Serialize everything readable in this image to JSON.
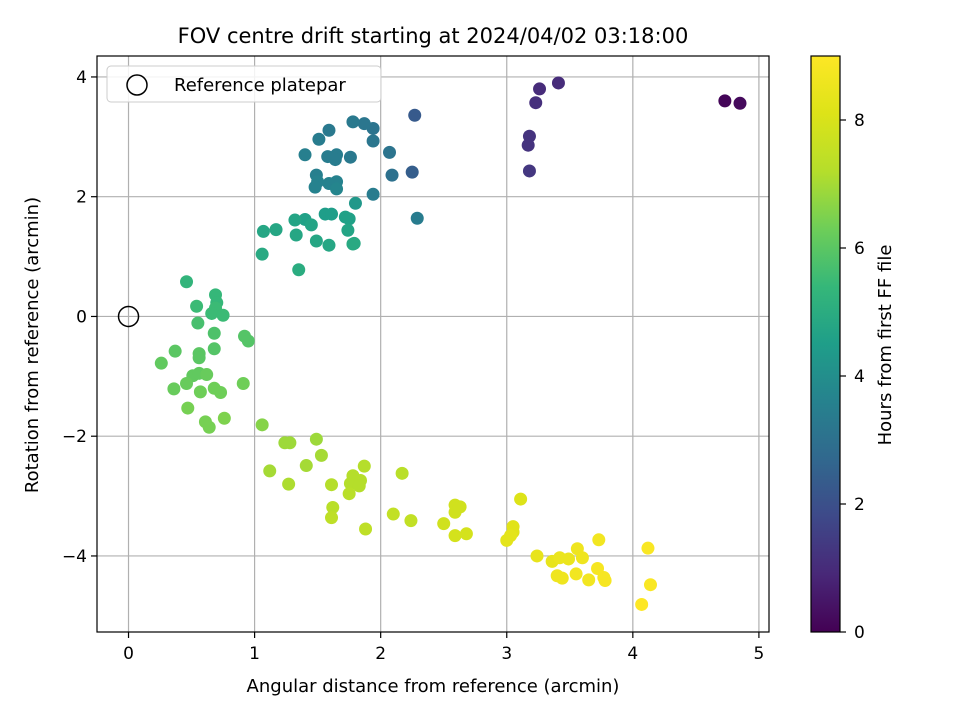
{
  "chart_data": {
    "type": "scatter",
    "title": "FOV centre drift starting at 2024/04/02 03:18:00",
    "xlabel": "Angular distance from reference (arcmin)",
    "ylabel": "Rotation from reference (arcmin)",
    "xlim": [
      -0.25,
      5.08
    ],
    "ylim": [
      -5.27,
      4.35
    ],
    "xticks": [
      0,
      1,
      2,
      3,
      4,
      5
    ],
    "xtick_labels": [
      "0",
      "1",
      "2",
      "3",
      "4",
      "5"
    ],
    "yticks": [
      -4,
      -2,
      0,
      2,
      4
    ],
    "ytick_labels": [
      "−4",
      "−2",
      "0",
      "2",
      "4"
    ],
    "grid": true,
    "legend": {
      "placement": "top-left",
      "entries": [
        {
          "label": "Reference platepar",
          "marker": "open-circle"
        }
      ]
    },
    "reference_point": {
      "x": 0,
      "y": 0
    },
    "colorbar": {
      "label": "Hours from first FF file",
      "colormap": "viridis",
      "range": [
        0,
        9
      ],
      "ticks": [
        0,
        2,
        4,
        6,
        8
      ],
      "tick_labels": [
        "0",
        "2",
        "4",
        "6",
        "8"
      ]
    },
    "points": [
      {
        "x": 4.73,
        "y": 3.6,
        "c": 0.1
      },
      {
        "x": 4.85,
        "y": 3.56,
        "c": 0.2
      },
      {
        "x": 3.41,
        "y": 3.9,
        "c": 1.0
      },
      {
        "x": 3.26,
        "y": 3.8,
        "c": 1.0
      },
      {
        "x": 3.23,
        "y": 3.57,
        "c": 1.1
      },
      {
        "x": 3.18,
        "y": 3.01,
        "c": 1.2
      },
      {
        "x": 3.17,
        "y": 2.86,
        "c": 1.2
      },
      {
        "x": 3.18,
        "y": 2.43,
        "c": 1.3
      },
      {
        "x": 2.27,
        "y": 3.36,
        "c": 2.3
      },
      {
        "x": 2.25,
        "y": 2.41,
        "c": 2.4
      },
      {
        "x": 2.29,
        "y": 1.64,
        "c": 3.4
      },
      {
        "x": 2.09,
        "y": 2.36,
        "c": 3.0
      },
      {
        "x": 2.07,
        "y": 2.74,
        "c": 3.1
      },
      {
        "x": 1.94,
        "y": 3.14,
        "c": 3.1
      },
      {
        "x": 1.94,
        "y": 2.93,
        "c": 3.2
      },
      {
        "x": 1.94,
        "y": 2.04,
        "c": 3.4
      },
      {
        "x": 1.87,
        "y": 3.22,
        "c": 3.2
      },
      {
        "x": 1.78,
        "y": 3.25,
        "c": 3.3
      },
      {
        "x": 1.76,
        "y": 2.66,
        "c": 3.3
      },
      {
        "x": 1.65,
        "y": 2.7,
        "c": 3.4
      },
      {
        "x": 1.64,
        "y": 2.62,
        "c": 3.4
      },
      {
        "x": 1.58,
        "y": 2.67,
        "c": 3.4
      },
      {
        "x": 1.59,
        "y": 3.11,
        "c": 3.3
      },
      {
        "x": 1.51,
        "y": 2.96,
        "c": 3.4
      },
      {
        "x": 1.4,
        "y": 2.7,
        "c": 3.5
      },
      {
        "x": 1.49,
        "y": 2.36,
        "c": 3.5
      },
      {
        "x": 1.5,
        "y": 2.25,
        "c": 3.6
      },
      {
        "x": 1.48,
        "y": 2.16,
        "c": 3.6
      },
      {
        "x": 1.59,
        "y": 2.22,
        "c": 3.6
      },
      {
        "x": 1.65,
        "y": 2.25,
        "c": 3.6
      },
      {
        "x": 1.65,
        "y": 2.13,
        "c": 3.7
      },
      {
        "x": 1.8,
        "y": 1.89,
        "c": 4.3
      },
      {
        "x": 1.56,
        "y": 1.71,
        "c": 4.5
      },
      {
        "x": 1.61,
        "y": 1.71,
        "c": 4.5
      },
      {
        "x": 1.72,
        "y": 1.66,
        "c": 4.6
      },
      {
        "x": 1.75,
        "y": 1.63,
        "c": 4.6
      },
      {
        "x": 1.4,
        "y": 1.62,
        "c": 4.6
      },
      {
        "x": 1.32,
        "y": 1.61,
        "c": 4.7
      },
      {
        "x": 1.45,
        "y": 1.53,
        "c": 4.7
      },
      {
        "x": 1.74,
        "y": 1.44,
        "c": 4.7
      },
      {
        "x": 1.17,
        "y": 1.45,
        "c": 4.8
      },
      {
        "x": 1.07,
        "y": 1.42,
        "c": 4.8
      },
      {
        "x": 1.33,
        "y": 1.36,
        "c": 4.8
      },
      {
        "x": 1.49,
        "y": 1.26,
        "c": 4.8
      },
      {
        "x": 1.59,
        "y": 1.19,
        "c": 4.8
      },
      {
        "x": 1.78,
        "y": 1.21,
        "c": 4.9
      },
      {
        "x": 1.79,
        "y": 1.22,
        "c": 4.9
      },
      {
        "x": 1.06,
        "y": 1.04,
        "c": 4.9
      },
      {
        "x": 1.35,
        "y": 0.78,
        "c": 5.0
      },
      {
        "x": 0.46,
        "y": 0.58,
        "c": 5.3
      },
      {
        "x": 0.69,
        "y": 0.36,
        "c": 5.4
      },
      {
        "x": 0.7,
        "y": 0.23,
        "c": 5.4
      },
      {
        "x": 0.54,
        "y": 0.17,
        "c": 5.5
      },
      {
        "x": 0.69,
        "y": 0.14,
        "c": 5.5
      },
      {
        "x": 0.66,
        "y": 0.05,
        "c": 5.5
      },
      {
        "x": 0.75,
        "y": 0.02,
        "c": 5.5
      },
      {
        "x": 0.55,
        "y": -0.11,
        "c": 5.7
      },
      {
        "x": 0.68,
        "y": -0.28,
        "c": 5.8
      },
      {
        "x": 0.92,
        "y": -0.33,
        "c": 5.9
      },
      {
        "x": 0.95,
        "y": -0.41,
        "c": 5.9
      },
      {
        "x": 0.68,
        "y": -0.54,
        "c": 5.9
      },
      {
        "x": 0.56,
        "y": -0.62,
        "c": 6.0
      },
      {
        "x": 0.56,
        "y": -0.69,
        "c": 6.0
      },
      {
        "x": 0.37,
        "y": -0.58,
        "c": 6.0
      },
      {
        "x": 0.26,
        "y": -0.78,
        "c": 6.1
      },
      {
        "x": 0.51,
        "y": -0.99,
        "c": 6.1
      },
      {
        "x": 0.56,
        "y": -0.95,
        "c": 6.1
      },
      {
        "x": 0.62,
        "y": -0.97,
        "c": 6.2
      },
      {
        "x": 0.46,
        "y": -1.12,
        "c": 6.2
      },
      {
        "x": 0.36,
        "y": -1.21,
        "c": 6.2
      },
      {
        "x": 0.57,
        "y": -1.26,
        "c": 6.3
      },
      {
        "x": 0.68,
        "y": -1.2,
        "c": 6.3
      },
      {
        "x": 0.73,
        "y": -1.27,
        "c": 6.3
      },
      {
        "x": 0.91,
        "y": -1.12,
        "c": 6.3
      },
      {
        "x": 0.47,
        "y": -1.53,
        "c": 6.4
      },
      {
        "x": 0.61,
        "y": -1.76,
        "c": 6.4
      },
      {
        "x": 0.64,
        "y": -1.85,
        "c": 6.4
      },
      {
        "x": 0.76,
        "y": -1.7,
        "c": 6.5
      },
      {
        "x": 1.06,
        "y": -1.81,
        "c": 6.6
      },
      {
        "x": 1.24,
        "y": -2.11,
        "c": 6.9
      },
      {
        "x": 1.28,
        "y": -2.11,
        "c": 6.9
      },
      {
        "x": 1.49,
        "y": -2.05,
        "c": 6.9
      },
      {
        "x": 1.53,
        "y": -2.32,
        "c": 7.0
      },
      {
        "x": 1.41,
        "y": -2.49,
        "c": 7.0
      },
      {
        "x": 1.12,
        "y": -2.58,
        "c": 7.0
      },
      {
        "x": 1.27,
        "y": -2.8,
        "c": 7.1
      },
      {
        "x": 1.87,
        "y": -2.5,
        "c": 7.2
      },
      {
        "x": 1.78,
        "y": -2.66,
        "c": 7.2
      },
      {
        "x": 1.76,
        "y": -2.79,
        "c": 7.2
      },
      {
        "x": 1.84,
        "y": -2.74,
        "c": 7.2
      },
      {
        "x": 1.83,
        "y": -2.83,
        "c": 7.2
      },
      {
        "x": 1.61,
        "y": -2.81,
        "c": 7.2
      },
      {
        "x": 1.75,
        "y": -2.96,
        "c": 7.3
      },
      {
        "x": 2.17,
        "y": -2.62,
        "c": 7.3
      },
      {
        "x": 1.62,
        "y": -3.19,
        "c": 7.3
      },
      {
        "x": 1.61,
        "y": -3.36,
        "c": 7.4
      },
      {
        "x": 1.88,
        "y": -3.55,
        "c": 7.4
      },
      {
        "x": 2.1,
        "y": -3.3,
        "c": 7.5
      },
      {
        "x": 2.24,
        "y": -3.41,
        "c": 7.5
      },
      {
        "x": 2.59,
        "y": -3.15,
        "c": 7.8
      },
      {
        "x": 2.63,
        "y": -3.18,
        "c": 7.8
      },
      {
        "x": 2.59,
        "y": -3.27,
        "c": 7.8
      },
      {
        "x": 2.5,
        "y": -3.46,
        "c": 7.8
      },
      {
        "x": 2.59,
        "y": -3.66,
        "c": 7.9
      },
      {
        "x": 2.68,
        "y": -3.63,
        "c": 7.9
      },
      {
        "x": 3.11,
        "y": -3.05,
        "c": 8.1
      },
      {
        "x": 3.05,
        "y": -3.51,
        "c": 8.2
      },
      {
        "x": 3.05,
        "y": -3.6,
        "c": 8.2
      },
      {
        "x": 3.03,
        "y": -3.66,
        "c": 8.3
      },
      {
        "x": 3.0,
        "y": -3.74,
        "c": 8.3
      },
      {
        "x": 3.24,
        "y": -4.0,
        "c": 8.4
      },
      {
        "x": 3.36,
        "y": -4.09,
        "c": 8.4
      },
      {
        "x": 3.42,
        "y": -4.03,
        "c": 8.5
      },
      {
        "x": 3.49,
        "y": -4.05,
        "c": 8.5
      },
      {
        "x": 3.56,
        "y": -3.88,
        "c": 8.6
      },
      {
        "x": 3.6,
        "y": -4.03,
        "c": 8.6
      },
      {
        "x": 3.73,
        "y": -3.73,
        "c": 8.7
      },
      {
        "x": 3.4,
        "y": -4.33,
        "c": 8.6
      },
      {
        "x": 3.44,
        "y": -4.37,
        "c": 8.6
      },
      {
        "x": 3.55,
        "y": -4.3,
        "c": 8.7
      },
      {
        "x": 3.65,
        "y": -4.4,
        "c": 8.7
      },
      {
        "x": 3.72,
        "y": -4.21,
        "c": 8.8
      },
      {
        "x": 3.77,
        "y": -4.36,
        "c": 8.8
      },
      {
        "x": 3.78,
        "y": -4.41,
        "c": 8.8
      },
      {
        "x": 4.12,
        "y": -3.87,
        "c": 8.9
      },
      {
        "x": 4.14,
        "y": -4.48,
        "c": 8.9
      },
      {
        "x": 4.07,
        "y": -4.81,
        "c": 9.0
      }
    ]
  }
}
